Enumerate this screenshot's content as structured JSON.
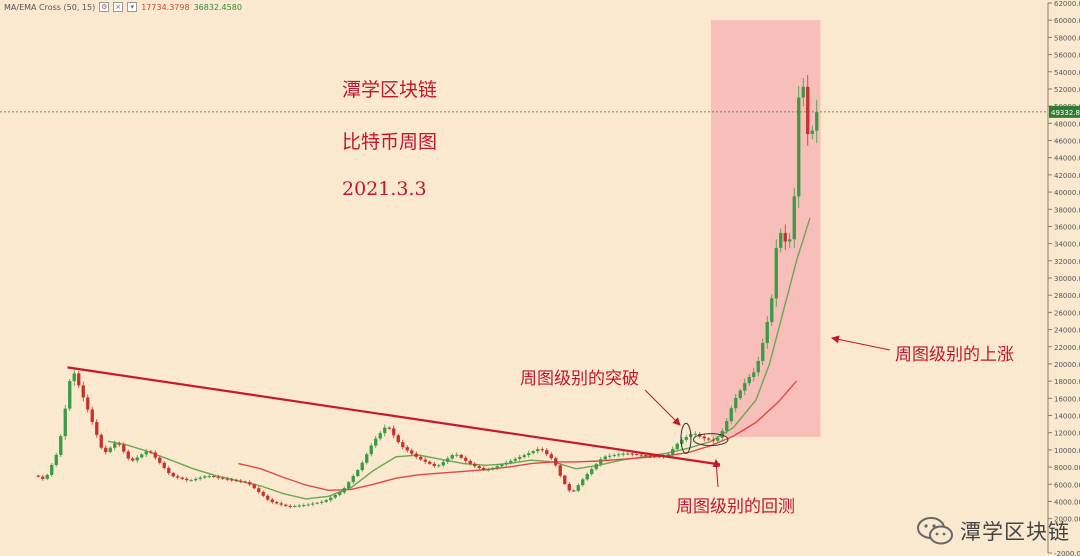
{
  "legend": {
    "indicator": "MA/EMA Cross (50, 15)",
    "ma_value": "17734.3798",
    "ema_value": "36832.4580"
  },
  "titles": {
    "line1": "潭学区块链",
    "line2": "比特币周图",
    "line3": "2021.3.3"
  },
  "annotations": {
    "breakout": "周图级别的突破",
    "retest": "周图级别的回测",
    "rally": "周图级别的上涨"
  },
  "watermark": "潭学区块链",
  "colors": {
    "background": "#fae8cf",
    "up": "#3a9b45",
    "down": "#c8302a",
    "trendline": "#c8182a",
    "ma_slow": "#e04848",
    "ma_fast": "#6aa84f",
    "highlight": "#f7b6b6"
  },
  "chart_data": {
    "type": "candlestick",
    "y_axis": {
      "ylim": [
        -2000,
        62000
      ],
      "ticks": [
        -2000,
        2000,
        4000,
        6000,
        8000,
        10000,
        12000,
        14000,
        16000,
        18000,
        20000,
        22000,
        24000,
        26000,
        28000,
        30000,
        32000,
        34000,
        36000,
        38000,
        40000,
        42000,
        44000,
        46000,
        48000,
        50000,
        52000,
        54000,
        56000,
        58000,
        60000,
        62000
      ],
      "tick_labels": [
        "-2000.00",
        "2000.00",
        "4000.00",
        "6000.00",
        "8000.00",
        "10000.00",
        "12000.00",
        "14000.00",
        "16000.00",
        "18000.00",
        "20000.00",
        "22000.00",
        "24000.00",
        "26000.00",
        "28000.00",
        "30000.00",
        "32000.00",
        "34000.00",
        "36000.00",
        "38000.00",
        "40000.00",
        "42000.00",
        "44000.00",
        "46000.00",
        "48000.00",
        "50000.00",
        "52000.00",
        "54000.00",
        "56000.00",
        "58000.00",
        "60000.00",
        "62000.00"
      ]
    },
    "current_price": 49332.84,
    "current_price_label": "49332.84",
    "pivots": [
      [
        0,
        7000
      ],
      [
        2,
        6500
      ],
      [
        5,
        10000
      ],
      [
        8,
        19600
      ],
      [
        12,
        14000
      ],
      [
        15,
        9500
      ],
      [
        18,
        11000
      ],
      [
        21,
        8600
      ],
      [
        25,
        10000
      ],
      [
        30,
        7000
      ],
      [
        34,
        6400
      ],
      [
        38,
        7000
      ],
      [
        42,
        6600
      ],
      [
        47,
        6200
      ],
      [
        52,
        4000
      ],
      [
        56,
        3400
      ],
      [
        60,
        3600
      ],
      [
        64,
        4000
      ],
      [
        68,
        5200
      ],
      [
        72,
        8000
      ],
      [
        75,
        11000
      ],
      [
        78,
        12900
      ],
      [
        81,
        10500
      ],
      [
        85,
        9000
      ],
      [
        89,
        8000
      ],
      [
        93,
        9600
      ],
      [
        97,
        8200
      ],
      [
        100,
        7600
      ],
      [
        104,
        8400
      ],
      [
        109,
        9500
      ],
      [
        112,
        10200
      ],
      [
        115,
        8800
      ],
      [
        117,
        6400
      ],
      [
        119,
        4900
      ],
      [
        122,
        6900
      ],
      [
        126,
        9200
      ],
      [
        131,
        9600
      ],
      [
        136,
        9300
      ],
      [
        140,
        9200
      ],
      [
        143,
        11000
      ],
      [
        146,
        12000
      ],
      [
        148,
        11400
      ],
      [
        151,
        11000
      ],
      [
        153,
        12600
      ],
      [
        155,
        15600
      ],
      [
        158,
        18200
      ],
      [
        160,
        19300
      ],
      [
        162,
        23500
      ],
      [
        164,
        29000
      ],
      [
        165,
        38000
      ],
      [
        166,
        32500
      ],
      [
        167,
        36000
      ],
      [
        168,
        33000
      ],
      [
        169,
        46000
      ],
      [
        170,
        56000
      ],
      [
        171,
        48500
      ],
      [
        172,
        45000
      ],
      [
        173,
        49300
      ]
    ],
    "ma_fast_points": [
      [
        16,
        11000
      ],
      [
        20,
        10600
      ],
      [
        25,
        9800
      ],
      [
        30,
        8800
      ],
      [
        35,
        7800
      ],
      [
        40,
        7000
      ],
      [
        45,
        6400
      ],
      [
        50,
        5800
      ],
      [
        55,
        4900
      ],
      [
        60,
        4300
      ],
      [
        65,
        4600
      ],
      [
        70,
        5600
      ],
      [
        75,
        7600
      ],
      [
        80,
        9200
      ],
      [
        85,
        9400
      ],
      [
        90,
        8900
      ],
      [
        95,
        8400
      ],
      [
        100,
        8200
      ],
      [
        105,
        8400
      ],
      [
        110,
        8800
      ],
      [
        115,
        8600
      ],
      [
        120,
        7800
      ],
      [
        125,
        8200
      ],
      [
        130,
        8800
      ],
      [
        135,
        9200
      ],
      [
        140,
        9600
      ],
      [
        145,
        10200
      ],
      [
        150,
        11000
      ],
      [
        155,
        12600
      ],
      [
        160,
        15800
      ],
      [
        163,
        20000
      ],
      [
        166,
        26000
      ],
      [
        169,
        32000
      ],
      [
        172,
        37000
      ]
    ],
    "ma_slow_points": [
      [
        45,
        8400
      ],
      [
        50,
        7800
      ],
      [
        55,
        6800
      ],
      [
        60,
        5900
      ],
      [
        65,
        5300
      ],
      [
        70,
        5400
      ],
      [
        75,
        6000
      ],
      [
        80,
        6700
      ],
      [
        85,
        7100
      ],
      [
        90,
        7300
      ],
      [
        95,
        7500
      ],
      [
        100,
        7700
      ],
      [
        105,
        8000
      ],
      [
        110,
        8400
      ],
      [
        115,
        8600
      ],
      [
        120,
        8600
      ],
      [
        125,
        8700
      ],
      [
        130,
        8900
      ],
      [
        135,
        9100
      ],
      [
        140,
        9300
      ],
      [
        145,
        9700
      ],
      [
        150,
        10500
      ],
      [
        155,
        11600
      ],
      [
        160,
        13200
      ],
      [
        165,
        15600
      ],
      [
        169,
        18000
      ]
    ],
    "trendline": [
      [
        7,
        19600
      ],
      [
        152,
        8300
      ]
    ],
    "breakout_week": 144,
    "retest_weeks": [
      147,
      152
    ],
    "rally_weeks": [
      154,
      173
    ]
  }
}
